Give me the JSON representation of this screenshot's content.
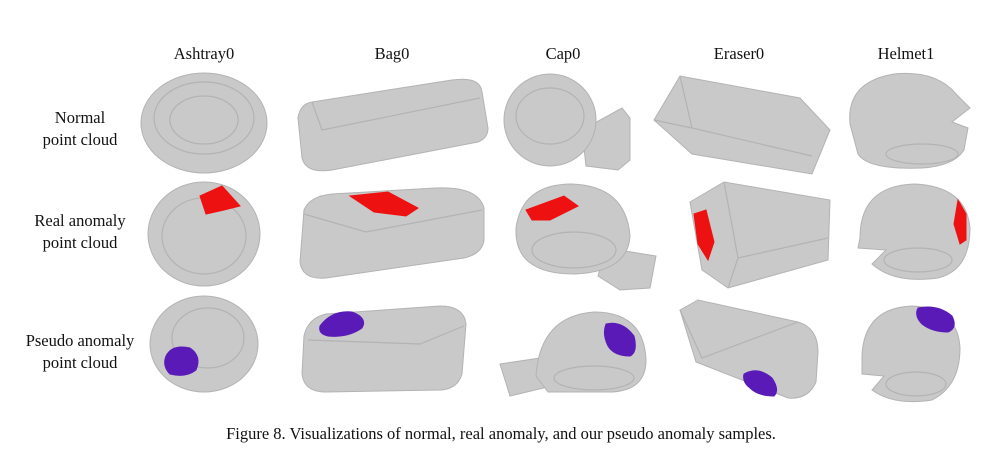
{
  "figure": {
    "columns": [
      {
        "key": "ashtray",
        "label": "Ashtray0"
      },
      {
        "key": "bag",
        "label": "Bag0"
      },
      {
        "key": "cap",
        "label": "Cap0"
      },
      {
        "key": "eraser",
        "label": "Eraser0"
      },
      {
        "key": "helmet",
        "label": "Helmet1"
      }
    ],
    "rows": [
      {
        "key": "normal",
        "line1": "Normal",
        "line2": "point cloud"
      },
      {
        "key": "real",
        "line1": "Real anomaly",
        "line2": "point cloud"
      },
      {
        "key": "pseudo",
        "line1": "Pseudo anomaly",
        "line2": "point cloud"
      }
    ],
    "caption": "Figure 8. Visualizations of normal, real anomaly, and our pseudo anomaly samples.",
    "colors": {
      "point_cloud": "#c9c9c9",
      "point_cloud_edge": "#b3b3b3",
      "real_anomaly": "#ee1111",
      "pseudo_anomaly": "#5a1ab8"
    }
  }
}
